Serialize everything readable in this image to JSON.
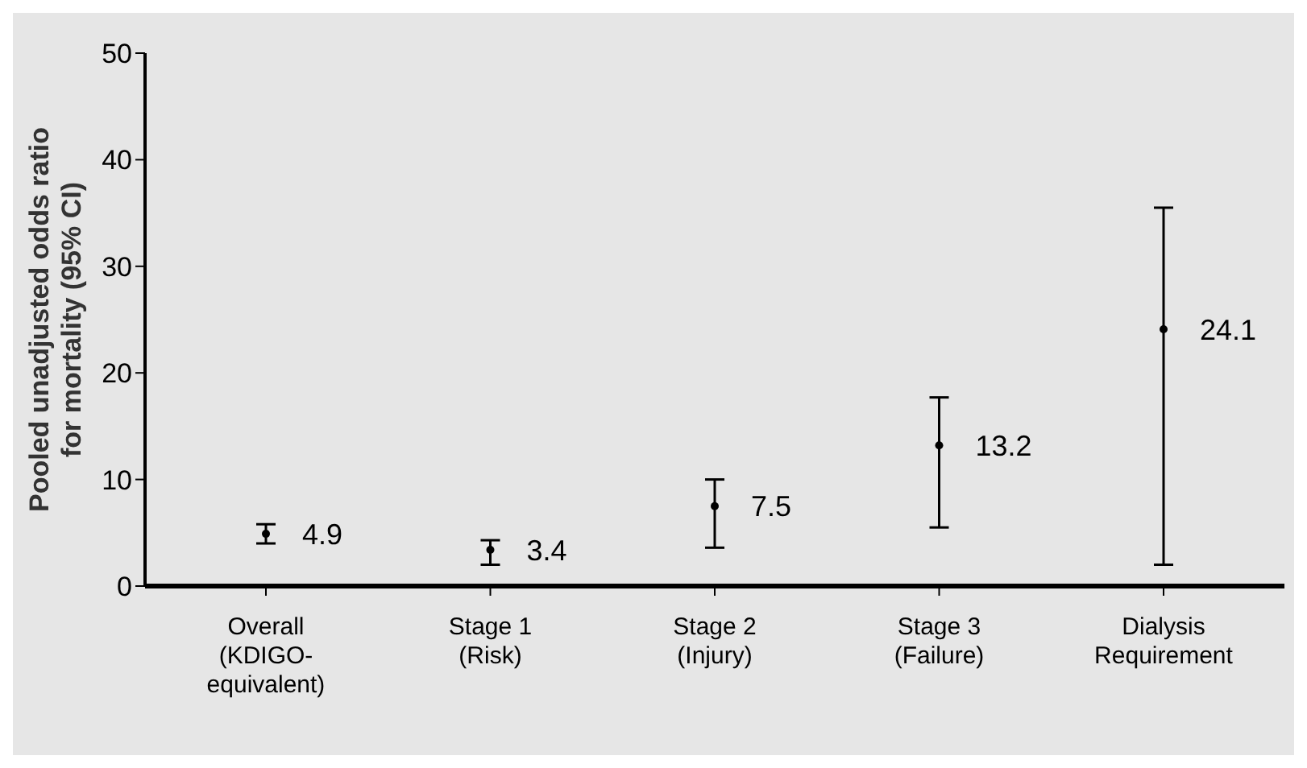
{
  "chart_data": {
    "type": "scatter",
    "ylabel": "Pooled unadjusted odds ratio\nfor mortality (95% CI)",
    "categories": [
      "Overall\n(KDIGO-\nequivalent)",
      "Stage 1\n(Risk)",
      "Stage 2\n(Injury)",
      "Stage 3\n(Failure)",
      "Dialysis\nRequirement"
    ],
    "values": [
      4.9,
      3.4,
      7.5,
      13.2,
      24.1
    ],
    "errors": [
      [
        4.0,
        5.8
      ],
      [
        2.0,
        4.3
      ],
      [
        3.6,
        10.0
      ],
      [
        5.5,
        17.7
      ],
      [
        2.0,
        35.5
      ]
    ],
    "color": "#000000",
    "data_labels": true,
    "marker": "circle",
    "ylim": [
      0,
      50
    ],
    "yticks": [
      0,
      10,
      20,
      30,
      40,
      50
    ],
    "grid": false,
    "legend": false
  }
}
